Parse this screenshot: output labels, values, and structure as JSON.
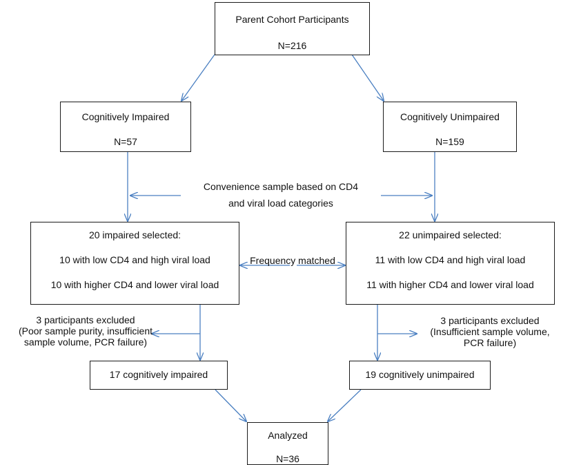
{
  "parent": {
    "title": "Parent Cohort Participants",
    "n": "N=216"
  },
  "impaired": {
    "title": "Cognitively Impaired",
    "n": "N=57"
  },
  "unimpaired": {
    "title": "Cognitively Unimpaired",
    "n": "N=159"
  },
  "convenience": {
    "line1": "Convenience sample based on CD4",
    "line2": "and viral load categories"
  },
  "sel_impaired": {
    "title": "20 impaired selected:",
    "line1": "10 with low CD4 and high viral load",
    "line2": "10 with higher CD4 and lower viral load"
  },
  "sel_unimpaired": {
    "title": "22 unimpaired selected:",
    "line1": "11 with low CD4 and high viral load",
    "line2": "11 with higher CD4 and lower viral load"
  },
  "frequency": "Frequency matched",
  "excl_left": {
    "line1": "3 participants excluded",
    "line2": "(Poor sample purity, insufficient",
    "line3": "sample volume, PCR failure)"
  },
  "excl_right": {
    "line1": "3 participants excluded",
    "line2": "(Insufficient sample volume,",
    "line3": "PCR failure)"
  },
  "final_impaired": "17 cognitively impaired",
  "final_unimpaired": "19 cognitively unimpaired",
  "analyzed": {
    "title": "Analyzed",
    "n": "N=36"
  },
  "colors": {
    "arrow": "#4a7fc1",
    "border": "#1a1a1a"
  }
}
